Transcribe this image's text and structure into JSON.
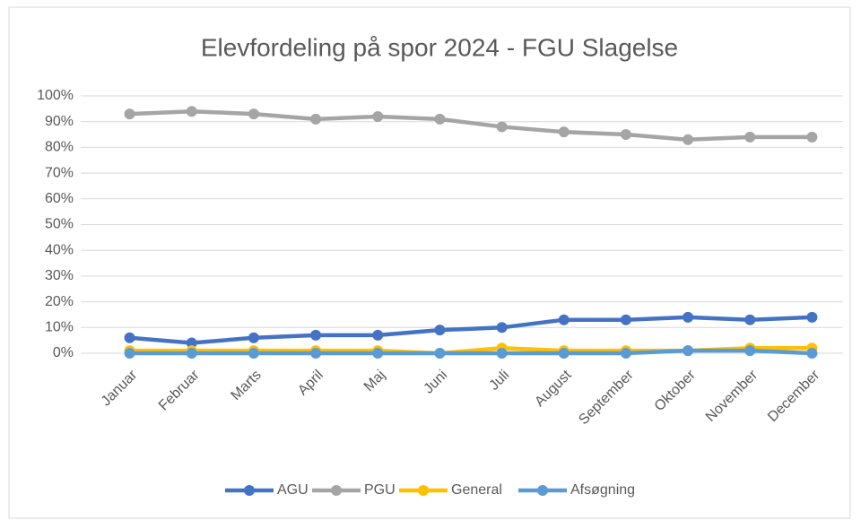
{
  "chart_data": {
    "type": "line",
    "title": "Elevfordeling på spor 2024 - FGU Slagelse",
    "categories": [
      "Januar",
      "Februar",
      "Marts",
      "April",
      "Maj",
      "Juni",
      "Juli",
      "August",
      "September",
      "Oktober",
      "November",
      "December"
    ],
    "series": [
      {
        "name": "AGU",
        "color": "#4472c4",
        "values": [
          6,
          4,
          6,
          7,
          7,
          9,
          10,
          13,
          13,
          14,
          13,
          14
        ]
      },
      {
        "name": "PGU",
        "color": "#a5a5a5",
        "values": [
          93,
          94,
          93,
          91,
          92,
          91,
          88,
          86,
          85,
          83,
          84,
          84
        ]
      },
      {
        "name": "General",
        "color": "#ffc000",
        "values": [
          1,
          1,
          1,
          1,
          1,
          0,
          2,
          1,
          1,
          1,
          2,
          2
        ]
      },
      {
        "name": "Afsøgning",
        "color": "#5b9bd5",
        "values": [
          0,
          0,
          0,
          0,
          0,
          0,
          0,
          0,
          0,
          1,
          1,
          0
        ]
      }
    ],
    "ylim": [
      0,
      100
    ],
    "yticks": [
      {
        "value": 0,
        "label": "0%"
      },
      {
        "value": 10,
        "label": "10%"
      },
      {
        "value": 20,
        "label": "20%"
      },
      {
        "value": 30,
        "label": "30%"
      },
      {
        "value": 40,
        "label": "40%"
      },
      {
        "value": 50,
        "label": "50%"
      },
      {
        "value": 60,
        "label": "60%"
      },
      {
        "value": 70,
        "label": "70%"
      },
      {
        "value": 80,
        "label": "80%"
      },
      {
        "value": 90,
        "label": "90%"
      },
      {
        "value": 100,
        "label": "100%"
      }
    ],
    "grid": true,
    "legend": "bottom"
  }
}
